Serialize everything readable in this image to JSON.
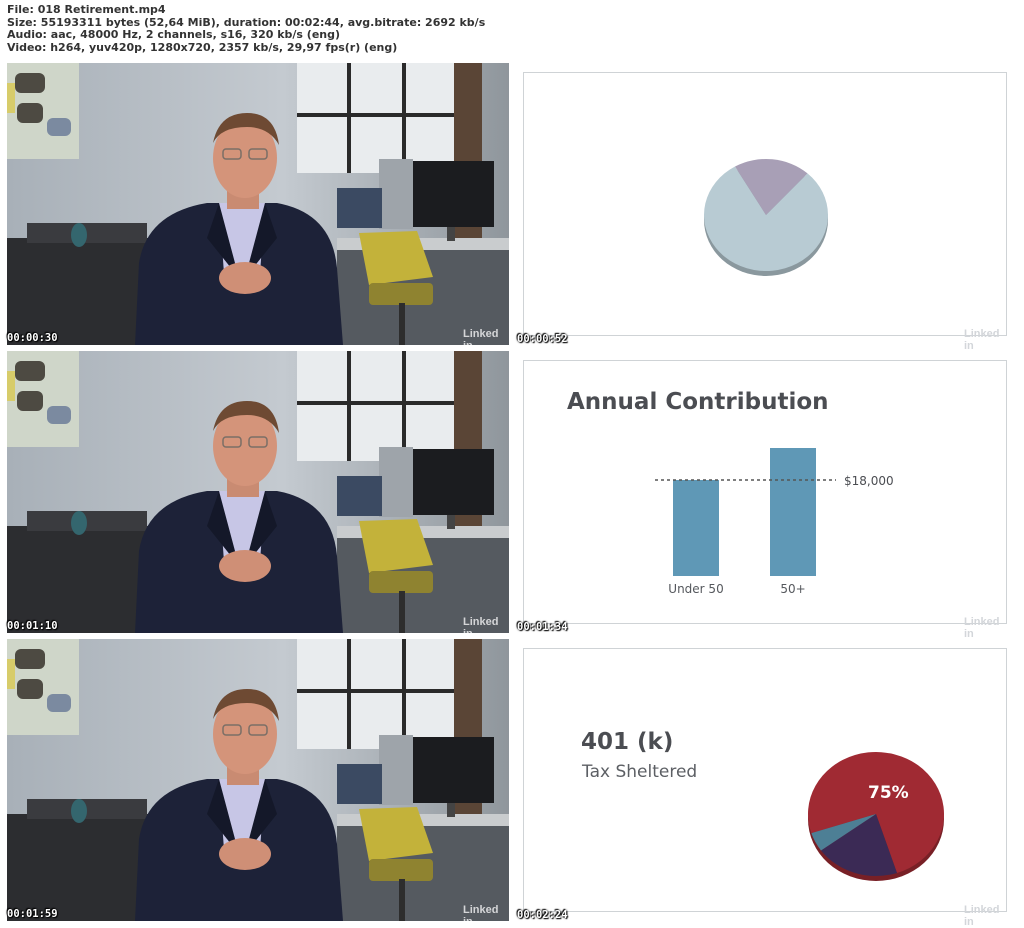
{
  "header": {
    "file": "File: 018 Retirement.mp4",
    "size": "Size: 55193311 bytes (52,64 MiB), duration: 00:02:44, avg.bitrate: 2692 kb/s",
    "audio": "Audio: aac, 48000 Hz, 2 channels, s16, 320 kb/s (eng)",
    "video": "Video: h264, yuv420p, 1280x720, 2357 kb/s, 29,97 fps(r) (eng)"
  },
  "timestamps": [
    "00:00:30",
    "00:00:52",
    "00:01:10",
    "00:01:34",
    "00:01:59",
    "00:02:24"
  ],
  "watermark": "Linked in",
  "slide2": {
    "title": "Annual Contribution",
    "threshold_label": "$18,000"
  },
  "slide3": {
    "title": "401 (k)",
    "subtitle": "Tax Sheltered",
    "pie_label": "75%"
  },
  "chart_data": [
    {
      "type": "pie",
      "title": "",
      "values": [
        80,
        20
      ],
      "colors": [
        "#b8cbd3",
        "#a89fb6"
      ]
    },
    {
      "type": "bar",
      "title": "Annual Contribution",
      "categories": [
        "Under 50",
        "50+"
      ],
      "values": [
        18000,
        24000
      ],
      "reference_line": 18000,
      "reference_label": "$18,000",
      "ylim": [
        0,
        30000
      ],
      "color": "#5f98b6"
    },
    {
      "type": "pie",
      "title": "401 (k)",
      "values": [
        75,
        20,
        5
      ],
      "labels": [
        "75%",
        "",
        ""
      ],
      "colors": [
        "#a02a33",
        "#3b2a55",
        "#4d7f95"
      ]
    }
  ],
  "colors": {
    "suit": "#1d2238",
    "shirt": "#c7c6e6",
    "wall": "#b9c0c8",
    "chair": "#c7b535"
  }
}
